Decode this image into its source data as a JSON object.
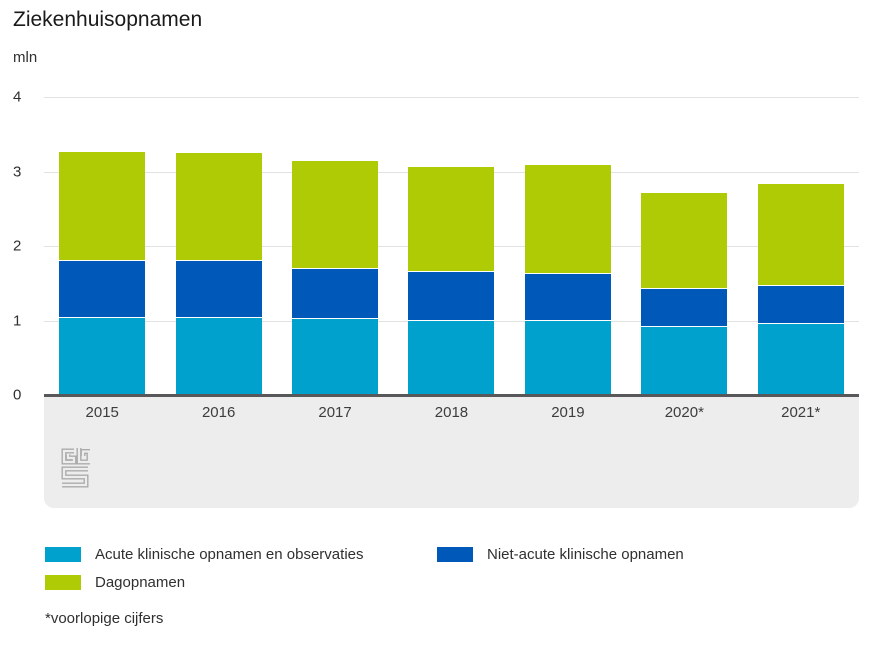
{
  "chart_data": {
    "type": "bar",
    "stacked": true,
    "title": "Ziekenhuisopnamen",
    "unit": "mln",
    "categories": [
      "2015",
      "2016",
      "2017",
      "2018",
      "2019",
      "2020*",
      "2021*"
    ],
    "series": [
      {
        "name": "Acute klinische opnamen en observaties",
        "color": "#00a1cd",
        "values": [
          1.05,
          1.05,
          1.03,
          1.01,
          1.01,
          0.93,
          0.97
        ]
      },
      {
        "name": "Niet-acute klinische opnamen",
        "color": "#0058b8",
        "values": [
          0.76,
          0.76,
          0.68,
          0.65,
          0.63,
          0.5,
          0.51
        ]
      },
      {
        "name": "Dagopnamen",
        "color": "#afcb05",
        "values": [
          1.46,
          1.45,
          1.44,
          1.41,
          1.46,
          1.29,
          1.37
        ]
      }
    ],
    "totals": [
      3.27,
      3.26,
      3.15,
      3.07,
      3.1,
      2.72,
      2.85
    ],
    "ylim": [
      0,
      4
    ],
    "yticks": [
      0,
      1,
      2,
      3,
      4
    ],
    "grid": true,
    "legend_position": "bottom",
    "footnote": "*voorlopige cijfers",
    "source_logo": "cbs-logo"
  }
}
